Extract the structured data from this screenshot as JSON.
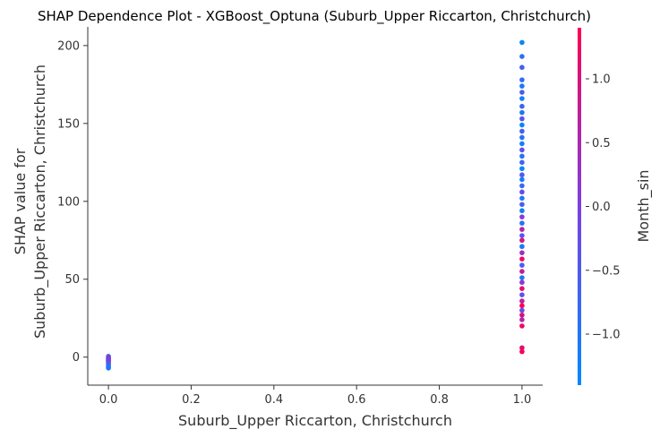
{
  "chart_data": {
    "type": "scatter",
    "title": "SHAP Dependence Plot - XGBoost_Optuna (Suburb_Upper Riccarton, Christchurch)",
    "xlabel": "Suburb_Upper Riccarton, Christchurch",
    "ylabel_lines": [
      "SHAP value for",
      "Suburb_Upper Riccarton, Christchurch"
    ],
    "xlim": [
      -0.05,
      1.05
    ],
    "ylim": [
      -18,
      212
    ],
    "x_ticks": [
      0.0,
      0.2,
      0.4,
      0.6,
      0.8,
      1.0
    ],
    "x_tick_labels": [
      "0.0",
      "0.2",
      "0.4",
      "0.6",
      "0.8",
      "1.0"
    ],
    "y_ticks": [
      0,
      50,
      100,
      150,
      200
    ],
    "y_tick_labels": [
      "0",
      "50",
      "100",
      "150",
      "200"
    ],
    "grid": false,
    "colorbar": {
      "label": "Month_sin",
      "range": [
        -1.4,
        1.4
      ],
      "ticks": [
        -1.0,
        -0.5,
        0.0,
        0.5,
        1.0
      ],
      "tick_labels": [
        "−1.0",
        "−0.5",
        "0.0",
        "0.5",
        "1.0"
      ],
      "colors": [
        "#008afb",
        "#7b3fe4",
        "#ff0052"
      ]
    },
    "points": [
      {
        "x": 0,
        "y": 0.5,
        "c": -0.8
      },
      {
        "x": 0,
        "y": -0.5,
        "c": 0.5
      },
      {
        "x": 0,
        "y": -1.5,
        "c": 1.0
      },
      {
        "x": 0,
        "y": -2.5,
        "c": -0.3
      },
      {
        "x": 0,
        "y": -3.5,
        "c": 0.9
      },
      {
        "x": 0,
        "y": -4.5,
        "c": 0.2
      },
      {
        "x": 0,
        "y": -5.5,
        "c": -0.9
      },
      {
        "x": 0,
        "y": -6.5,
        "c": -1.2
      },
      {
        "x": 0,
        "y": -7.0,
        "c": -1.0
      },
      {
        "x": 0,
        "y": -2.0,
        "c": 1.2
      },
      {
        "x": 0,
        "y": -3.0,
        "c": -0.6
      },
      {
        "x": 0,
        "y": -1.0,
        "c": 0.0
      },
      {
        "x": 1,
        "y": 202,
        "c": -1.3
      },
      {
        "x": 1,
        "y": 193,
        "c": -0.9
      },
      {
        "x": 1,
        "y": 186,
        "c": -0.6
      },
      {
        "x": 1,
        "y": 178,
        "c": -0.8
      },
      {
        "x": 1,
        "y": 174,
        "c": -1.1
      },
      {
        "x": 1,
        "y": 170,
        "c": -0.5
      },
      {
        "x": 1,
        "y": 166,
        "c": -1.2
      },
      {
        "x": 1,
        "y": 161,
        "c": -0.7
      },
      {
        "x": 1,
        "y": 157,
        "c": -1.0
      },
      {
        "x": 1,
        "y": 153,
        "c": -0.4
      },
      {
        "x": 1,
        "y": 149,
        "c": -1.3
      },
      {
        "x": 1,
        "y": 145,
        "c": -0.6
      },
      {
        "x": 1,
        "y": 141,
        "c": -0.9
      },
      {
        "x": 1,
        "y": 137,
        "c": -1.2
      },
      {
        "x": 1,
        "y": 133,
        "c": -0.3
      },
      {
        "x": 1,
        "y": 129,
        "c": -1.0
      },
      {
        "x": 1,
        "y": 125,
        "c": -0.7
      },
      {
        "x": 1,
        "y": 121,
        "c": -1.3
      },
      {
        "x": 1,
        "y": 117,
        "c": -0.5
      },
      {
        "x": 1,
        "y": 114,
        "c": -1.1
      },
      {
        "x": 1,
        "y": 110,
        "c": -0.8
      },
      {
        "x": 1,
        "y": 106,
        "c": -0.2
      },
      {
        "x": 1,
        "y": 102,
        "c": -1.0
      },
      {
        "x": 1,
        "y": 98,
        "c": -0.6
      },
      {
        "x": 1,
        "y": 94,
        "c": -1.2
      },
      {
        "x": 1,
        "y": 90,
        "c": 0.1
      },
      {
        "x": 1,
        "y": 86,
        "c": -0.9
      },
      {
        "x": 1,
        "y": 82,
        "c": 0.6
      },
      {
        "x": 1,
        "y": 78,
        "c": -0.4
      },
      {
        "x": 1,
        "y": 75,
        "c": 0.9
      },
      {
        "x": 1,
        "y": 71,
        "c": -1.1
      },
      {
        "x": 1,
        "y": 67,
        "c": 0.4
      },
      {
        "x": 1,
        "y": 63,
        "c": 1.2
      },
      {
        "x": 1,
        "y": 59,
        "c": -0.6
      },
      {
        "x": 1,
        "y": 55,
        "c": 0.8
      },
      {
        "x": 1,
        "y": 51,
        "c": -1.0
      },
      {
        "x": 1,
        "y": 48,
        "c": 0.2
      },
      {
        "x": 1,
        "y": 44,
        "c": 1.1
      },
      {
        "x": 1,
        "y": 40,
        "c": -0.3
      },
      {
        "x": 1,
        "y": 36,
        "c": 0.7
      },
      {
        "x": 1,
        "y": 33,
        "c": 1.3
      },
      {
        "x": 1,
        "y": 30,
        "c": -0.2
      },
      {
        "x": 1,
        "y": 27,
        "c": 1.0
      },
      {
        "x": 1,
        "y": 24,
        "c": 0.5
      },
      {
        "x": 1,
        "y": 20,
        "c": 1.2
      },
      {
        "x": 1,
        "y": 6,
        "c": 1.1
      },
      {
        "x": 1,
        "y": 3.5,
        "c": 1.3
      }
    ]
  }
}
